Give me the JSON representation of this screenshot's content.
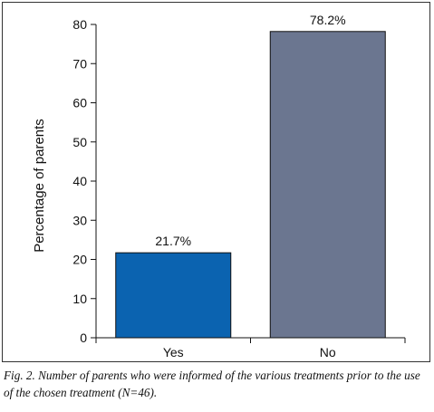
{
  "chart_data": {
    "type": "bar",
    "categories": [
      "Yes",
      "No"
    ],
    "values": [
      21.7,
      78.2
    ],
    "value_labels": [
      "21.7%",
      "78.2%"
    ],
    "colors": [
      "#0B63B0",
      "#6B7690"
    ],
    "ylabel": "Percentage of parents",
    "xlabel": "",
    "ylim": [
      0,
      80
    ],
    "yticks": [
      0,
      10,
      20,
      30,
      40,
      50,
      60,
      70,
      80
    ],
    "grid": false
  },
  "caption": "Fig. 2. Number of parents who were informed of the various treatments prior to the use of the chosen treatment (N=46)."
}
